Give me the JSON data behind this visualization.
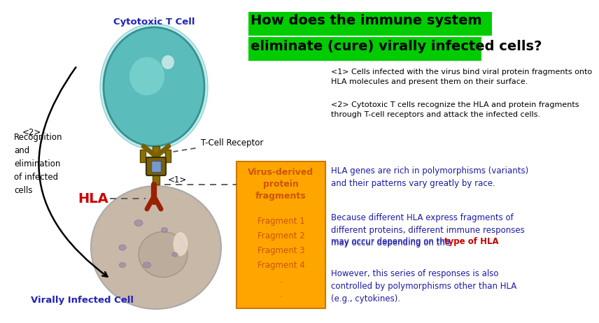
{
  "bg_color": "#ffffff",
  "question_text_line1": "How does the immune system",
  "question_text_line2": "eliminate (cure) virally infected cells?",
  "question_bg": "#00cc00",
  "point1": "<1> Cells infected with the virus bind viral protein fragments onto\nHLA molecules and present them on their surface.",
  "point2": "<2> Cytotoxic T cells recognize the HLA and protein fragments\nthrough T-cell receptors and attack the infected cells.",
  "left_label1": "<2>",
  "left_text": "Recognition\nand\nelimination\nof infected\ncells",
  "cytotoxic_label": "Cytotoxic T Cell",
  "infected_label": "Virally Infected Cell",
  "hla_label": "HLA",
  "tcr_label": "T-Cell Receptor",
  "marker1": "<1>",
  "yellow_box_title": "Virus-derived\nprotein\nfragments",
  "yellow_box_items": [
    "Fragment 1",
    "Fragment 2",
    "Fragment 3",
    "Fragment 4",
    ".",
    "."
  ],
  "yellow_bg": "#FFA500",
  "yellow_text": "#cc5500",
  "right_text1": "HLA genes are rich in polymorphisms (variants)\nand their patterns vary greatly by race.",
  "right_text2_part1": "Because different HLA express fragments of\ndifferent proteins, different immune responses\nmay occur depending on the ",
  "right_text2_red": "type of HLA",
  "right_text2_end": ".",
  "right_text3": "However, this series of responses is also\ncontrolled by polymorphisms other than HLA\n(e.g., cytokines).",
  "blue_text_color": "#1a1aaa",
  "red_text_color": "#cc0000",
  "dark_text": "#000000",
  "tcell_color": "#5bbcbc",
  "tcell_edge": "#3a9090",
  "infected_color": "#c8b8a8",
  "infected_edge": "#aaaaaa",
  "tcr_color": "#8B7000",
  "hla_arm_color": "#8B2500",
  "dashed_color": "#555555"
}
